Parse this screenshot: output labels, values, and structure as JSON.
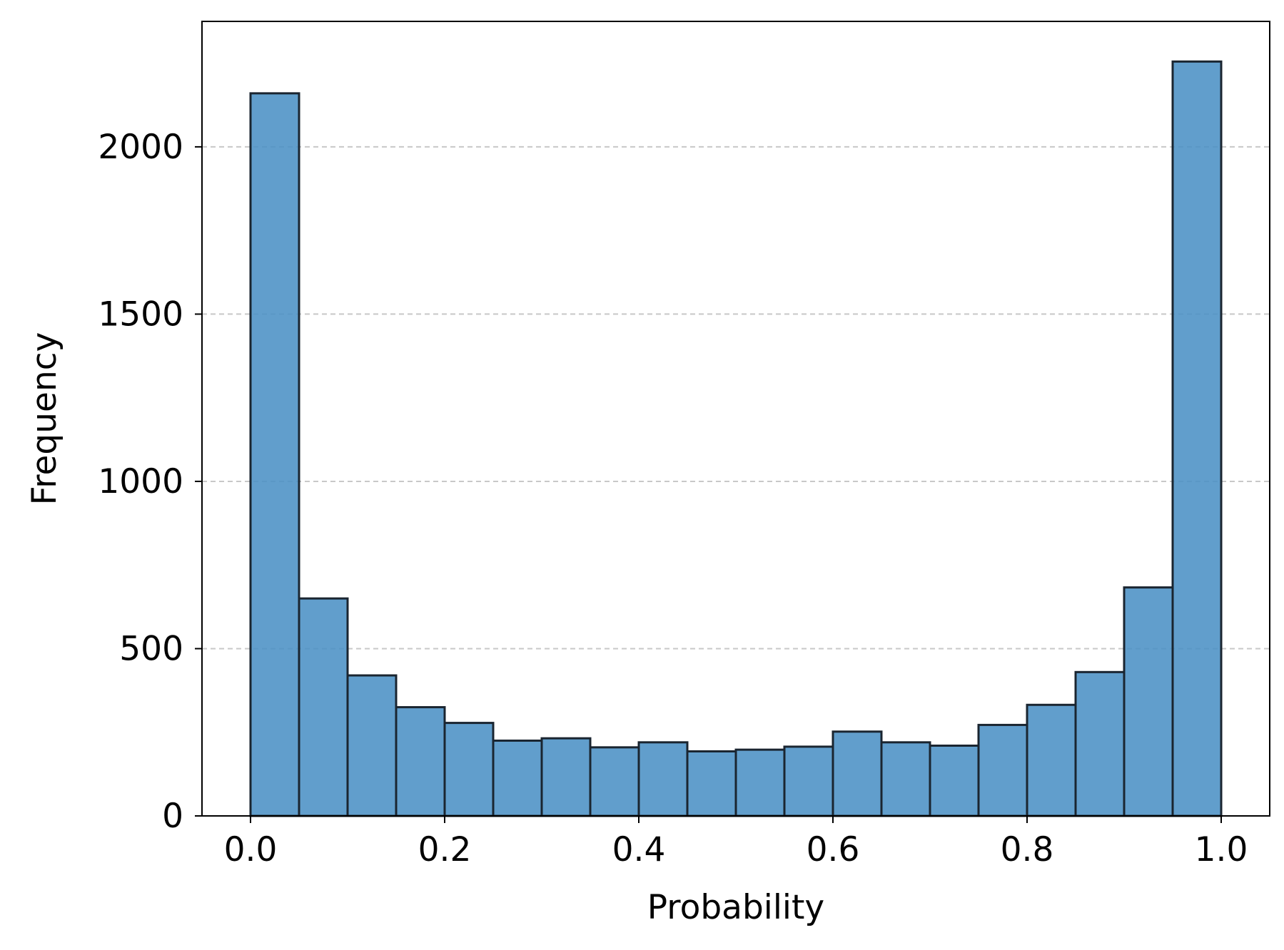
{
  "chart_data": {
    "type": "bar",
    "title": "",
    "xlabel": "Probability",
    "ylabel": "Frequency",
    "xlim": [
      -0.05,
      1.05
    ],
    "ylim": [
      0,
      2375
    ],
    "xticks": [
      "0.0",
      "0.2",
      "0.4",
      "0.6",
      "0.8",
      "1.0"
    ],
    "yticks": [
      "0",
      "500",
      "1000",
      "1500",
      "2000"
    ],
    "grid": "y-dashed",
    "bin_width": 0.05,
    "bins": [
      0.0,
      0.05,
      0.1,
      0.15,
      0.2,
      0.25,
      0.3,
      0.35,
      0.4,
      0.45,
      0.5,
      0.55,
      0.6,
      0.65,
      0.7,
      0.75,
      0.8,
      0.85,
      0.9,
      0.95
    ],
    "values": [
      2160,
      650,
      420,
      325,
      278,
      225,
      232,
      205,
      220,
      193,
      198,
      207,
      252,
      220,
      210,
      272,
      332,
      430,
      683,
      2255
    ],
    "bar_color": "#4a90c4",
    "edge_color": "#1a2530"
  }
}
